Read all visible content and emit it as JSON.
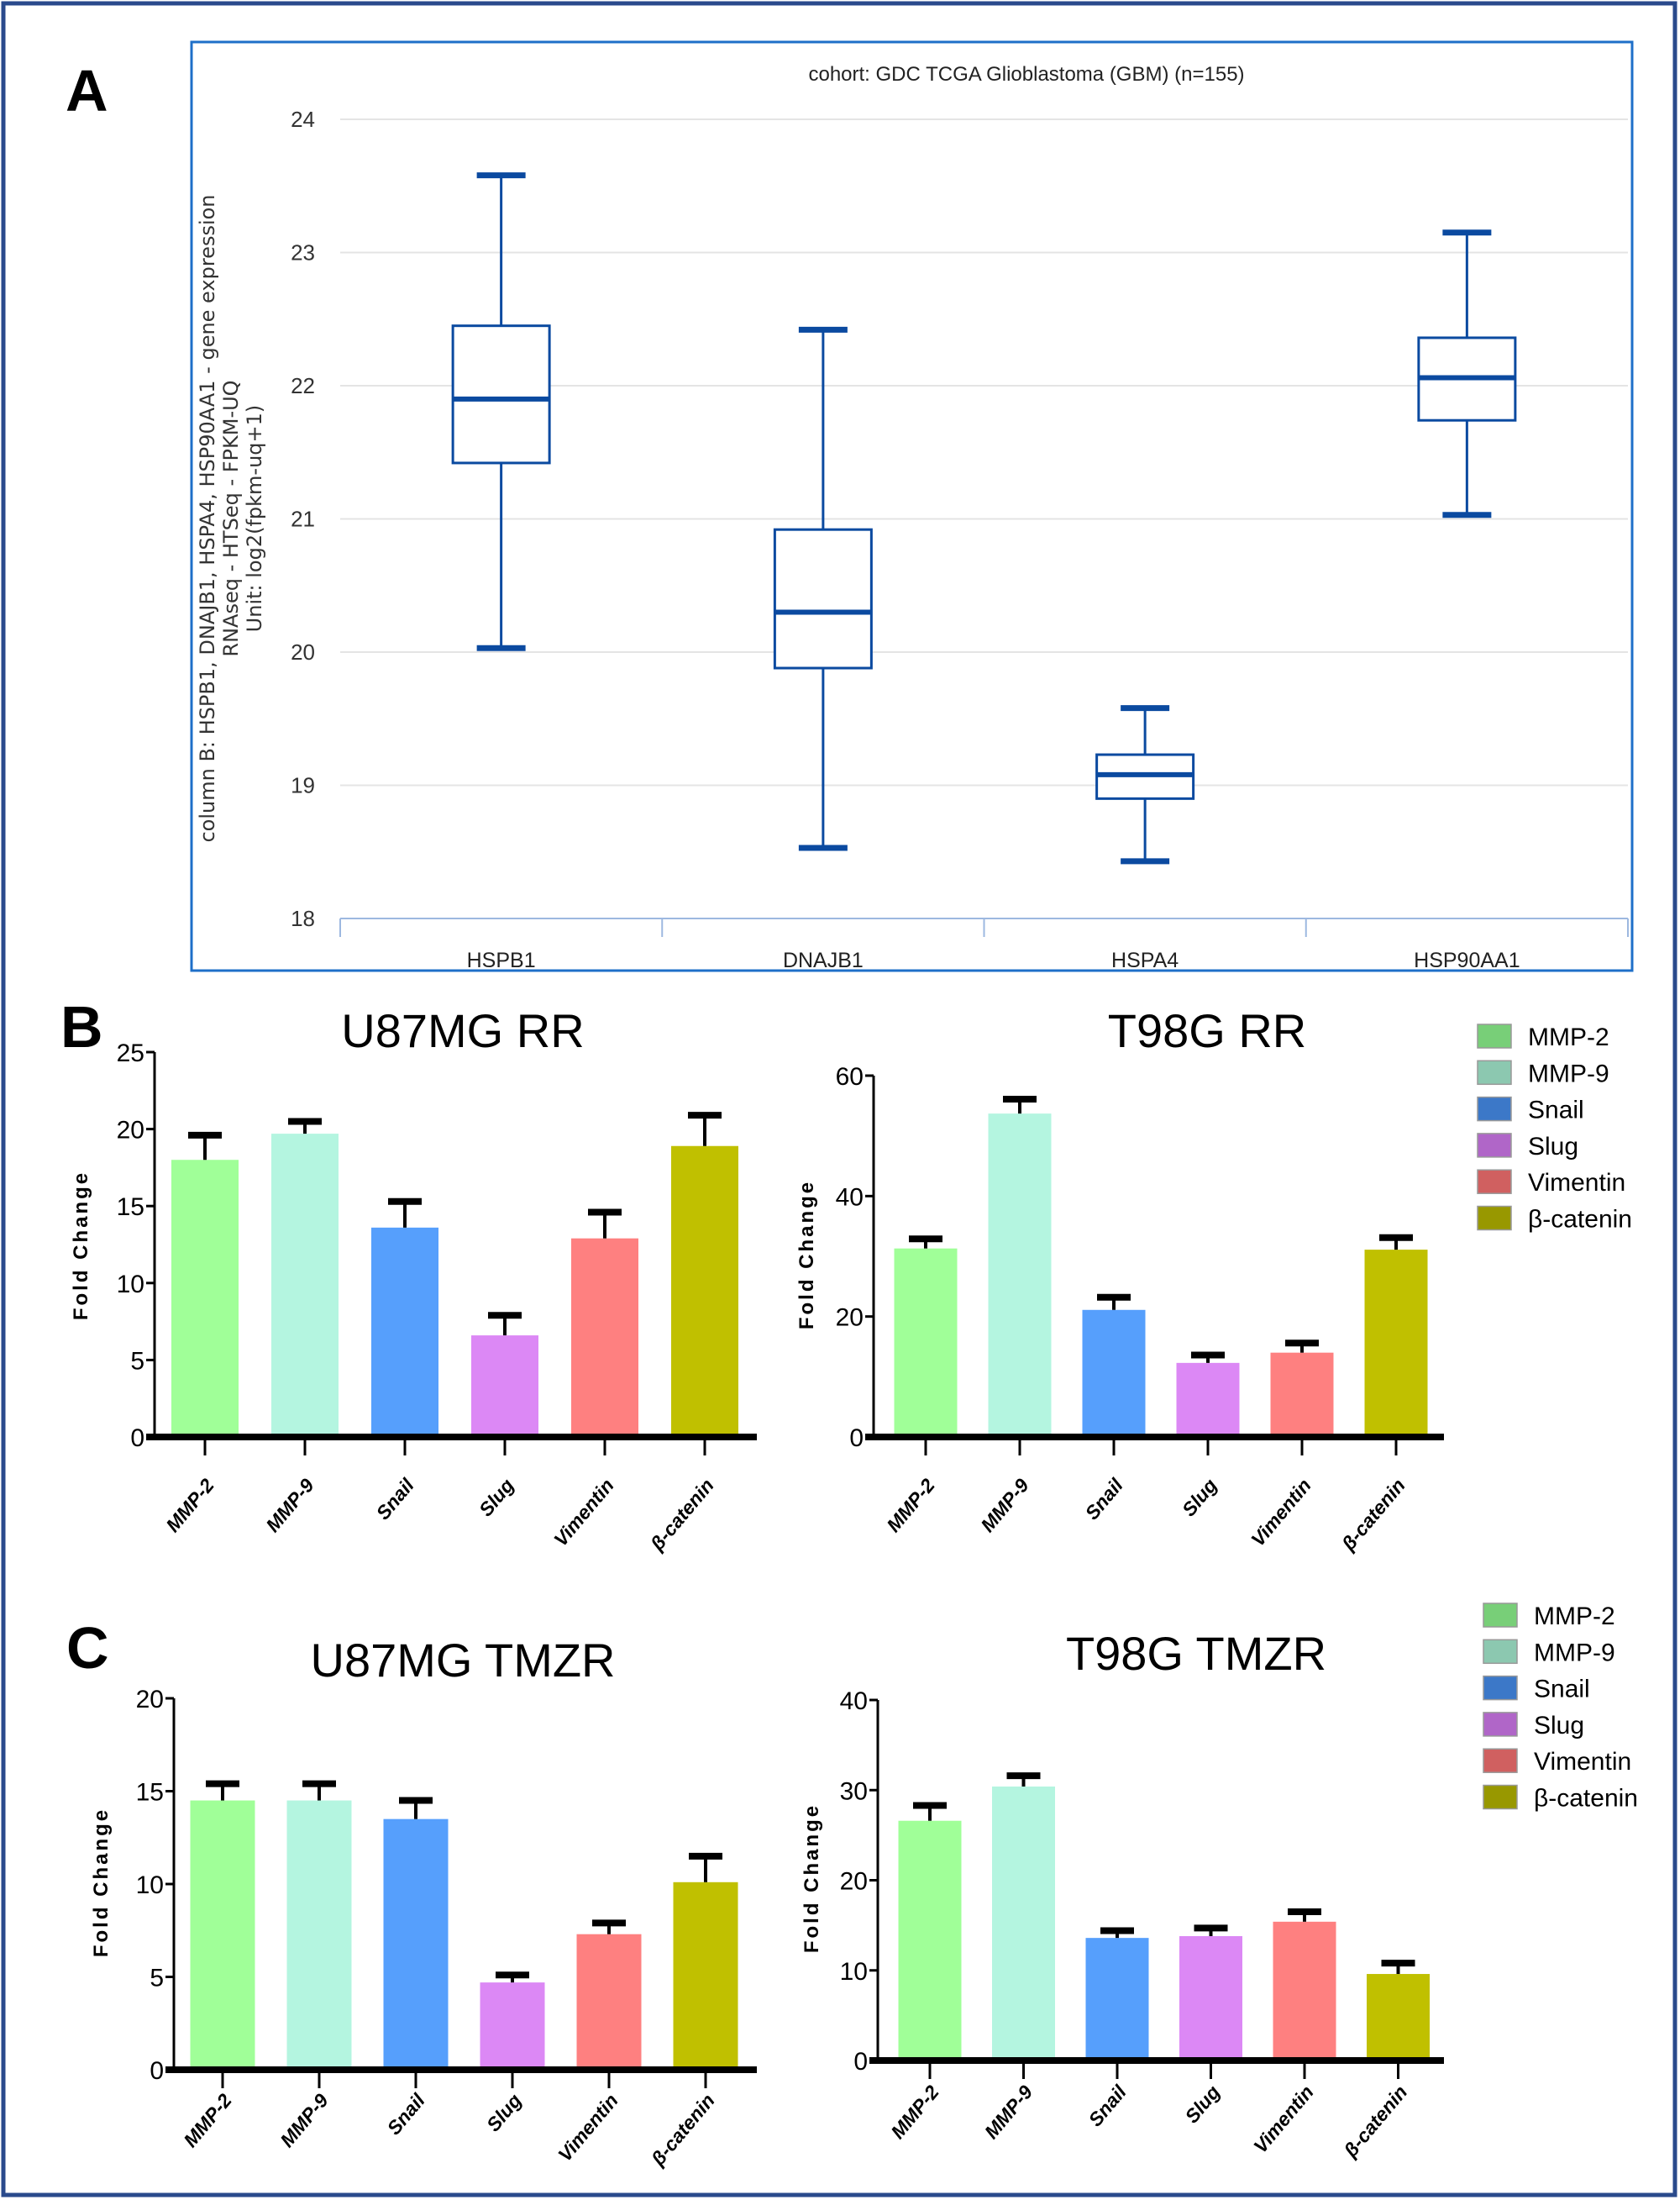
{
  "panel_labels": {
    "a": "A",
    "b": "B",
    "c": "C"
  },
  "colors": {
    "frame": "#2a4a8c",
    "panel_a_border": "#1e6fc8",
    "box": "#0b4aa0",
    "grid": "#e4e4e4",
    "bars": {
      "MMP-2": "#a0ff98",
      "MMP-9": "#b4f5e0",
      "Snail": "#569ffc",
      "Slug": "#dc88f5",
      "Vimentin": "#fe8080",
      "β-catenin": "#c0c000"
    },
    "legend": {
      "MMP-2": "#78cf78",
      "MMP-9": "#8cc8b0",
      "Snail": "#3c78c8",
      "Slug": "#b066c8",
      "Vimentin": "#d06060",
      "β-catenin": "#989800"
    }
  },
  "legend_b": [
    "MMP-2",
    "MMP-9",
    "Snail",
    "Slug",
    "Vimentin",
    "β-catenin"
  ],
  "legend_c": [
    "MMP-2",
    "MMP-9",
    "Snail",
    "Slug",
    "Vimentin",
    "β-catenin"
  ],
  "chart_data": [
    {
      "type": "box",
      "title": "cohort: GDC TCGA Glioblastoma (GBM) (n=155)",
      "ylabel": [
        "column B: HSPB1, DNAJB1, HSPA4, HSP90AA1 - gene expression",
        "RNAseq - HTSeq - FPKM-UQ",
        "Unit: log2(fpkm-uq+1)"
      ],
      "ylim": [
        18,
        24
      ],
      "yticks": [
        "18",
        "19",
        "20",
        "21",
        "22",
        "23",
        "24"
      ],
      "grid": true,
      "categories": [
        "HSPB1",
        "DNAJB1",
        "HSPA4",
        "HSP90AA1"
      ],
      "boxes": [
        {
          "min": 20.03,
          "q1": 21.42,
          "median": 21.9,
          "q3": 22.45,
          "max": 23.58
        },
        {
          "min": 18.53,
          "q1": 19.88,
          "median": 20.3,
          "q3": 20.92,
          "max": 22.42
        },
        {
          "min": 18.43,
          "q1": 18.9,
          "median": 19.08,
          "q3": 19.23,
          "max": 19.58
        },
        {
          "min": 21.03,
          "q1": 21.74,
          "median": 22.06,
          "q3": 22.36,
          "max": 23.15
        }
      ]
    },
    {
      "type": "bar",
      "title": "U87MG RR",
      "ylabel": "Fold  Change",
      "ylim": [
        0,
        25
      ],
      "yticks": [
        "0",
        "5",
        "10",
        "15",
        "20",
        "25"
      ],
      "categories": [
        "MMP-2",
        "MMP-9",
        "Snail",
        "Slug",
        "Vimentin",
        "β-catenin"
      ],
      "values": [
        18.0,
        19.7,
        13.6,
        6.6,
        12.9,
        18.9
      ],
      "errors": [
        1.6,
        0.8,
        1.7,
        1.3,
        1.7,
        2.0
      ]
    },
    {
      "type": "bar",
      "title": "T98G RR",
      "ylabel": "Fold  Change",
      "ylim": [
        0,
        60
      ],
      "yticks": [
        "0",
        "20",
        "40",
        "60"
      ],
      "categories": [
        "MMP-2",
        "MMP-9",
        "Snail",
        "Slug",
        "Vimentin",
        "β-catenin"
      ],
      "values": [
        31.3,
        53.7,
        21.1,
        12.3,
        14.0,
        31.1
      ],
      "errors": [
        1.6,
        2.4,
        2.1,
        1.3,
        1.6,
        2.0
      ]
    },
    {
      "type": "bar",
      "title": "U87MG TMZR",
      "ylabel": "Fold  Change",
      "ylim": [
        0,
        20
      ],
      "yticks": [
        "0",
        "5",
        "10",
        "15",
        "20"
      ],
      "categories": [
        "MMP-2",
        "MMP-9",
        "Snail",
        "Slug",
        "Vimentin",
        "β-catenin"
      ],
      "values": [
        14.5,
        14.5,
        13.5,
        4.7,
        7.3,
        10.1
      ],
      "errors": [
        0.9,
        0.9,
        1.0,
        0.4,
        0.6,
        1.4
      ]
    },
    {
      "type": "bar",
      "title": "T98G TMZR",
      "ylabel": "Fold  Change",
      "ylim": [
        0,
        40
      ],
      "yticks": [
        "0",
        "10",
        "20",
        "30",
        "40"
      ],
      "categories": [
        "MMP-2",
        "MMP-9",
        "Snail",
        "Slug",
        "Vimentin",
        "β-catenin"
      ],
      "values": [
        26.6,
        30.4,
        13.6,
        13.8,
        15.4,
        9.6
      ],
      "errors": [
        1.7,
        1.2,
        0.8,
        0.9,
        1.1,
        1.2
      ]
    }
  ]
}
